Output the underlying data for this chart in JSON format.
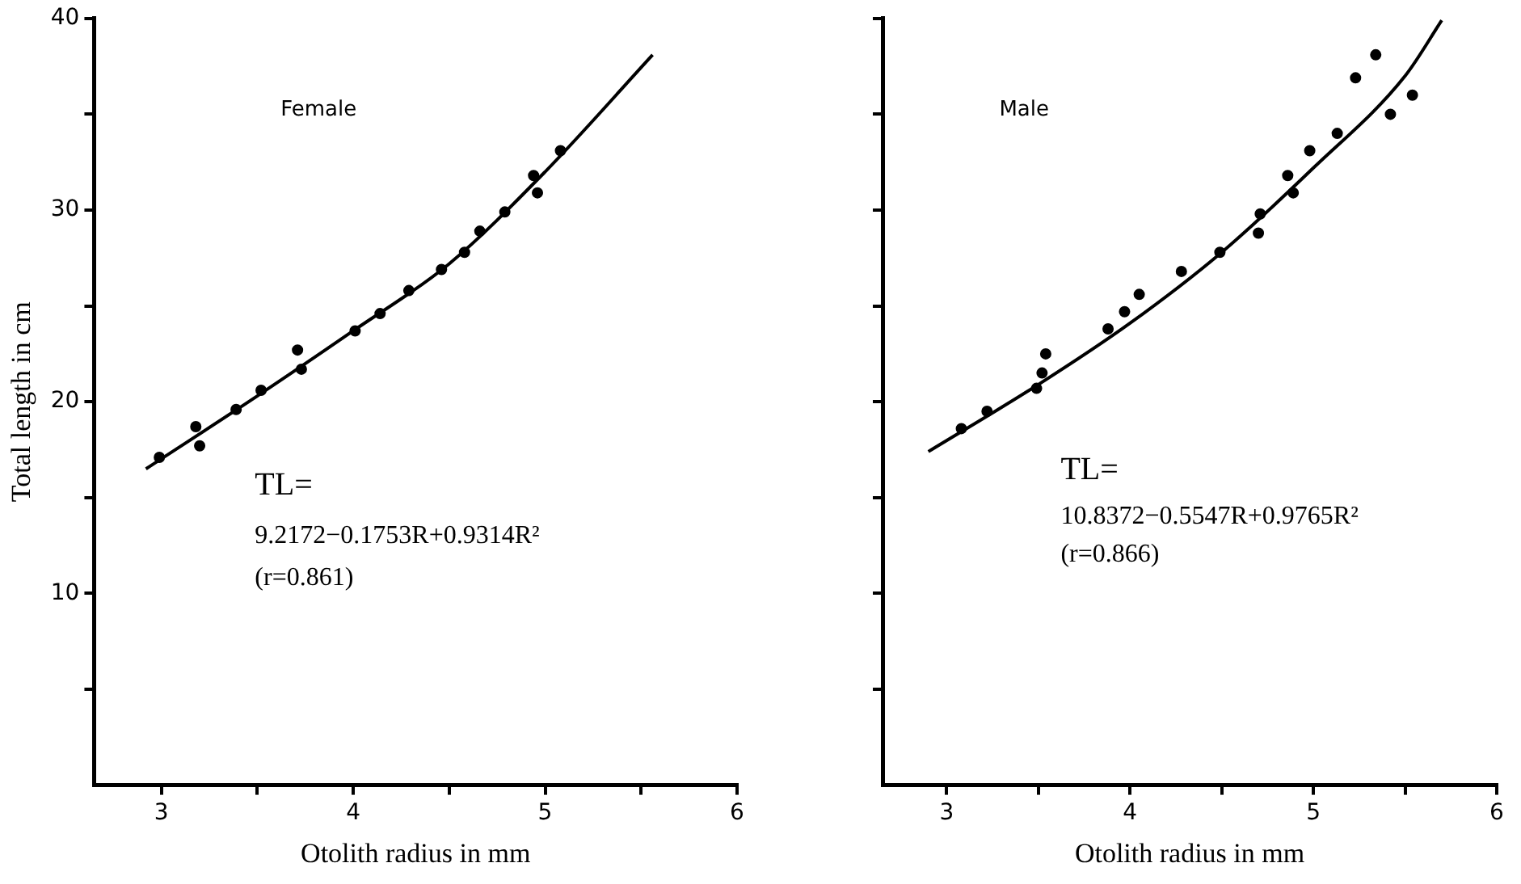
{
  "chart_data": [
    {
      "type": "scatter",
      "xlabel": "Otolith radius in mm",
      "ylabel": "Total length in cm",
      "annotations": [
        "Female",
        "TL=",
        "9.2172−0.1753R+0.9314R²",
        "(r=0.861)"
      ],
      "series": [
        {
          "type": "scatter",
          "marker": "circle",
          "color": "#000000",
          "x": [
            2.99,
            3.18,
            3.2,
            3.39,
            3.52,
            3.71,
            3.73,
            4.01,
            4.14,
            4.29,
            4.46,
            4.58,
            4.66,
            4.79,
            4.94,
            4.96,
            5.08
          ],
          "values": [
            17.1,
            18.7,
            17.7,
            19.6,
            20.6,
            22.7,
            21.7,
            23.7,
            24.6,
            25.8,
            26.9,
            27.8,
            28.9,
            29.9,
            31.8,
            30.9,
            33.1
          ]
        },
        {
          "type": "line",
          "marker": "none",
          "color": "#000000",
          "x": [
            2.92,
            3.5,
            4.0,
            4.5,
            5.0,
            5.56
          ],
          "values": [
            16.5,
            20.3,
            23.7,
            27.2,
            32.0,
            38.1
          ]
        }
      ],
      "xlim": [
        2.65,
        6
      ],
      "xticks": [
        3,
        {
          "value": 3.5,
          "label": null
        },
        4,
        {
          "value": 4.5,
          "label": null
        },
        5,
        {
          "value": 5.5,
          "label": null
        },
        6
      ],
      "ylim": [
        0,
        40
      ],
      "yticks": [
        {
          "value": 5,
          "label": null
        },
        10,
        {
          "value": 15,
          "label": null
        },
        20,
        {
          "value": 25,
          "label": null
        },
        30,
        {
          "value": 35,
          "label": null
        },
        40
      ],
      "grid": false,
      "legend": false
    },
    {
      "type": "scatter",
      "xlabel": "Otolith radius in mm",
      "annotations": [
        "Male",
        "TL=",
        "10.8372−0.5547R+0.9765R²",
        "(r=0.866)"
      ],
      "series": [
        {
          "type": "scatter",
          "marker": "circle",
          "color": "#000000",
          "x": [
            3.08,
            3.22,
            3.49,
            3.52,
            3.54,
            3.88,
            3.97,
            4.05,
            4.28,
            4.49,
            4.7,
            4.71,
            4.86,
            4.89,
            4.98,
            5.13,
            5.23,
            5.34,
            5.42,
            5.54
          ],
          "values": [
            18.6,
            19.5,
            20.7,
            21.5,
            22.5,
            23.8,
            24.7,
            25.6,
            26.8,
            27.8,
            28.8,
            29.8,
            31.8,
            30.9,
            33.1,
            34.0,
            36.9,
            38.1,
            35.0,
            36.0
          ]
        },
        {
          "type": "line",
          "marker": "none",
          "color": "#000000",
          "x": [
            2.9,
            3.5,
            4.0,
            4.5,
            5.0,
            5.5,
            5.7
          ],
          "values": [
            17.4,
            20.9,
            24.1,
            27.8,
            32.2,
            37.0,
            39.9
          ]
        }
      ],
      "xlim": [
        2.65,
        6
      ],
      "xticks": [
        3,
        {
          "value": 3.5,
          "label": null
        },
        4,
        {
          "value": 4.5,
          "label": null
        },
        5,
        {
          "value": 5.5,
          "label": null
        },
        6
      ],
      "ylim": [
        0,
        40
      ],
      "yticks": [
        5,
        10,
        15,
        20,
        25,
        30,
        35,
        40
      ],
      "tick_labels": "x",
      "grid": false,
      "legend": false
    }
  ]
}
